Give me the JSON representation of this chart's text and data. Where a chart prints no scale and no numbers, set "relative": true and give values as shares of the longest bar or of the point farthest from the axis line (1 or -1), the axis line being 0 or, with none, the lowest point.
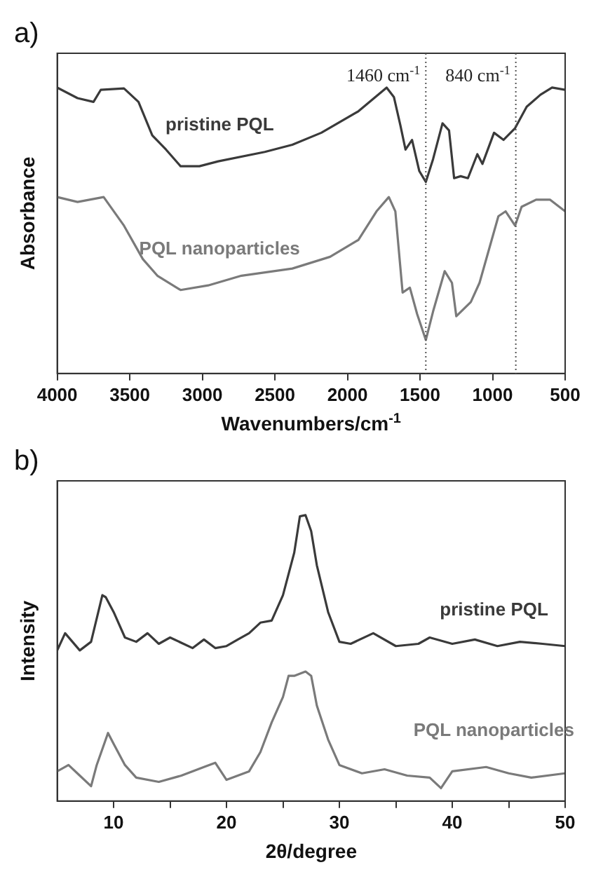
{
  "chart_data": [
    {
      "type": "line",
      "relative": true,
      "annotations": [
        "a)"
      ],
      "xlabel": "Wavenumbers/cm$^{-1}$",
      "ylabel": "Absorbance",
      "xlim": [
        4000,
        500
      ],
      "xticks": [
        4000,
        3500,
        3000,
        2500,
        2000,
        1500,
        1000,
        500
      ],
      "ref_lines": [
        {
          "axis": "x",
          "value": 1460,
          "label": "1460 cm$^{-1}$",
          "line_style": "dotted",
          "color": "#555555"
        },
        {
          "axis": "x",
          "value": 840,
          "label": "840 cm$^{-1}$",
          "line_style": "dotted",
          "color": "#555555"
        }
      ],
      "series": [
        {
          "name": "pristine PQL",
          "color": "#3a3a3a",
          "x": [
            4000,
            3860,
            3750,
            3700,
            3540,
            3440,
            3345,
            3250,
            3150,
            3020,
            2890,
            2570,
            2380,
            2180,
            1925,
            1730,
            1680,
            1635,
            1600,
            1555,
            1505,
            1460,
            1410,
            1345,
            1300,
            1265,
            1220,
            1170,
            1105,
            1070,
            990,
            925,
            845,
            765,
            670,
            590,
            500
          ],
          "values": [
            1.0,
            0.963,
            0.95,
            0.992,
            0.997,
            0.95,
            0.833,
            0.783,
            0.725,
            0.725,
            0.742,
            0.775,
            0.8,
            0.842,
            0.917,
            1.0,
            0.967,
            0.867,
            0.783,
            0.817,
            0.708,
            0.67,
            0.75,
            0.875,
            0.85,
            0.683,
            0.69,
            0.683,
            0.767,
            0.733,
            0.842,
            0.817,
            0.858,
            0.933,
            0.975,
            1.0,
            0.992
          ]
        },
        {
          "name": "PQL nanoparticles",
          "color": "#7a7a7a",
          "x": [
            4000,
            3860,
            3680,
            3540,
            3410,
            3310,
            3150,
            2960,
            2730,
            2380,
            2120,
            1925,
            1800,
            1715,
            1670,
            1620,
            1570,
            1520,
            1460,
            1410,
            1330,
            1280,
            1250,
            1150,
            1090,
            960,
            910,
            845,
            800,
            700,
            605,
            500
          ],
          "values": [
            0.617,
            0.6,
            0.617,
            0.517,
            0.4,
            0.342,
            0.292,
            0.308,
            0.342,
            0.367,
            0.408,
            0.467,
            0.567,
            0.617,
            0.567,
            0.283,
            0.3,
            0.208,
            0.117,
            0.217,
            0.358,
            0.317,
            0.2,
            0.25,
            0.317,
            0.55,
            0.567,
            0.517,
            0.583,
            0.608,
            0.608,
            0.567
          ]
        }
      ]
    },
    {
      "type": "line",
      "relative": true,
      "annotations": [
        "b)"
      ],
      "xlabel": "2θ/degree",
      "ylabel": "Intensity",
      "xlim": [
        5,
        50
      ],
      "xticks": [
        10,
        {
          "value": 15,
          "label": null
        },
        20,
        {
          "value": 25,
          "label": null
        },
        30,
        {
          "value": 35,
          "label": null
        },
        40,
        {
          "value": 45,
          "label": null
        },
        50
      ],
      "series": [
        {
          "name": "pristine PQL",
          "color": "#3a3a3a",
          "x": [
            5,
            5.7,
            7,
            8,
            9,
            9.3,
            10,
            11,
            12,
            13,
            14,
            15,
            17,
            18,
            19,
            20,
            21,
            22,
            23,
            24,
            25,
            26,
            26.5,
            27,
            27.5,
            28,
            29,
            30,
            31,
            33,
            35,
            37,
            38,
            40,
            42,
            44,
            46,
            48,
            50
          ],
          "values": [
            0.527,
            0.587,
            0.527,
            0.557,
            0.72,
            0.713,
            0.661,
            0.572,
            0.557,
            0.587,
            0.55,
            0.572,
            0.535,
            0.565,
            0.535,
            0.542,
            0.565,
            0.587,
            0.624,
            0.631,
            0.72,
            0.869,
            0.996,
            1.0,
            0.944,
            0.825,
            0.661,
            0.557,
            0.55,
            0.587,
            0.542,
            0.55,
            0.572,
            0.55,
            0.565,
            0.542,
            0.557,
            0.55,
            0.542
          ]
        },
        {
          "name": "PQL nanoparticles",
          "color": "#7a7a7a",
          "x": [
            5,
            6,
            7,
            8,
            8.5,
            9.5,
            10,
            11,
            12,
            14,
            16,
            18,
            19,
            20,
            22,
            23,
            24,
            25,
            25.5,
            26,
            27,
            27.5,
            28,
            29,
            30,
            32,
            34,
            36,
            38,
            39,
            40,
            43,
            45,
            47,
            50
          ],
          "values": [
            0.104,
            0.126,
            0.089,
            0.052,
            0.126,
            0.238,
            0.2,
            0.126,
            0.082,
            0.067,
            0.089,
            0.119,
            0.134,
            0.074,
            0.104,
            0.171,
            0.275,
            0.364,
            0.438,
            0.438,
            0.453,
            0.438,
            0.334,
            0.215,
            0.126,
            0.097,
            0.111,
            0.089,
            0.082,
            0.045,
            0.104,
            0.119,
            0.097,
            0.082,
            0.097
          ]
        }
      ]
    }
  ]
}
